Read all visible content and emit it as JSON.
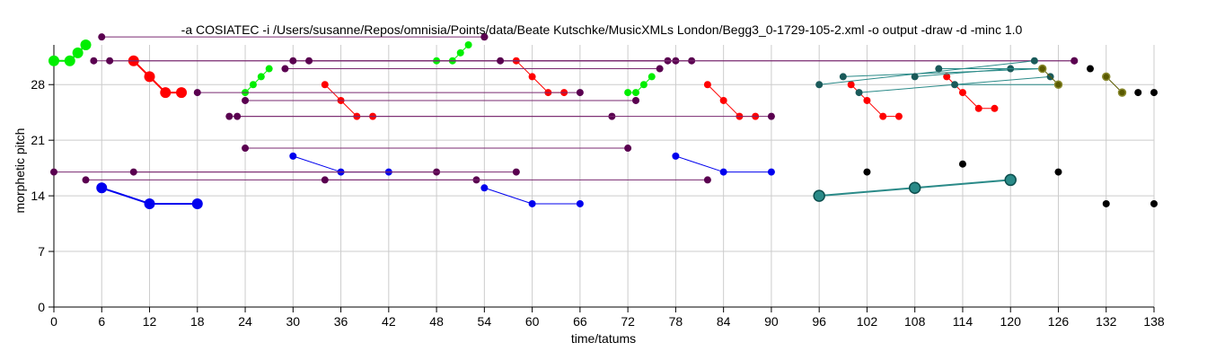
{
  "chart_data": {
    "type": "scatter",
    "title": "-a COSIATEC -i /Users/susanne/Repos/omnisia/Points/data/Beate Kutschke/MusicXMLs London/Begg3_0-1729-105-2.xml -o output -draw -d -minc 1.0",
    "xlabel": "time/tatums",
    "ylabel": "morphetic pitch",
    "xlim": [
      0,
      138
    ],
    "ylim": [
      0,
      33
    ],
    "x_ticks": [
      0,
      6,
      12,
      18,
      24,
      30,
      36,
      42,
      48,
      54,
      60,
      66,
      72,
      78,
      84,
      90,
      96,
      102,
      108,
      114,
      120,
      126,
      132,
      138
    ],
    "y_ticks": [
      0,
      7,
      14,
      21,
      28
    ],
    "grid": true,
    "colors": {
      "green": "#00ee00",
      "red": "#ff0000",
      "blue": "#0000ee",
      "purple": "#5a0050",
      "purple_line": "#7a2a70",
      "teal": "#2a8a88",
      "teal_dark": "#1a5a5a",
      "olive": "#5a5a00",
      "black": "#000000"
    },
    "series": [
      {
        "color": "green",
        "style": "chain",
        "size": "large",
        "points": [
          [
            0,
            31
          ],
          [
            2,
            31
          ],
          [
            3,
            32
          ],
          [
            4,
            33
          ]
        ]
      },
      {
        "color": "green",
        "style": "chain",
        "size": "small",
        "points": [
          [
            24,
            27
          ],
          [
            25,
            28
          ],
          [
            26,
            29
          ],
          [
            27,
            30
          ]
        ]
      },
      {
        "color": "green",
        "style": "chain",
        "size": "small",
        "points": [
          [
            48,
            31
          ],
          [
            50,
            31
          ],
          [
            51,
            32
          ],
          [
            52,
            33
          ]
        ]
      },
      {
        "color": "green",
        "style": "chain",
        "size": "small",
        "points": [
          [
            72,
            27
          ],
          [
            73,
            27
          ],
          [
            74,
            28
          ],
          [
            75,
            29
          ]
        ]
      },
      {
        "color": "red",
        "style": "chain",
        "size": "large",
        "points": [
          [
            10,
            31
          ],
          [
            12,
            29
          ],
          [
            14,
            27
          ],
          [
            16,
            27
          ]
        ]
      },
      {
        "color": "red",
        "style": "chain",
        "size": "small",
        "points": [
          [
            34,
            28
          ],
          [
            36,
            26
          ],
          [
            38,
            24
          ],
          [
            40,
            24
          ]
        ]
      },
      {
        "color": "red",
        "style": "chain",
        "size": "small",
        "points": [
          [
            58,
            31
          ],
          [
            60,
            29
          ],
          [
            62,
            27
          ],
          [
            64,
            27
          ]
        ]
      },
      {
        "color": "red",
        "style": "chain",
        "size": "small",
        "points": [
          [
            82,
            28
          ],
          [
            84,
            26
          ],
          [
            86,
            24
          ],
          [
            88,
            24
          ]
        ]
      },
      {
        "color": "red",
        "style": "chain",
        "size": "small",
        "points": [
          [
            100,
            28
          ],
          [
            102,
            26
          ],
          [
            104,
            24
          ],
          [
            106,
            24
          ]
        ]
      },
      {
        "color": "red",
        "style": "chain",
        "size": "small",
        "points": [
          [
            112,
            29
          ],
          [
            114,
            27
          ],
          [
            116,
            25
          ],
          [
            118,
            25
          ]
        ]
      },
      {
        "color": "blue",
        "style": "chain",
        "size": "large",
        "points": [
          [
            6,
            15
          ],
          [
            12,
            13
          ],
          [
            18,
            13
          ]
        ]
      },
      {
        "color": "blue",
        "style": "chain",
        "size": "small",
        "points": [
          [
            30,
            19
          ],
          [
            36,
            17
          ],
          [
            42,
            17
          ]
        ]
      },
      {
        "color": "blue",
        "style": "chain",
        "size": "small",
        "points": [
          [
            54,
            15
          ],
          [
            60,
            13
          ],
          [
            66,
            13
          ]
        ]
      },
      {
        "color": "blue",
        "style": "chain",
        "size": "small",
        "points": [
          [
            78,
            19
          ],
          [
            84,
            17
          ],
          [
            90,
            17
          ]
        ]
      },
      {
        "color": "purple",
        "style": "pair",
        "size": "small",
        "line": "purple_line",
        "points": [
          [
            6,
            34
          ],
          [
            54,
            34
          ]
        ]
      },
      {
        "color": "purple",
        "style": "pair",
        "size": "small",
        "line": "purple_line",
        "points": [
          [
            5,
            31
          ],
          [
            128,
            31
          ]
        ]
      },
      {
        "color": "purple",
        "style": "pair",
        "size": "small",
        "line": "purple_line",
        "points": [
          [
            7,
            31
          ],
          [
            77,
            31
          ]
        ]
      },
      {
        "color": "purple",
        "style": "pair",
        "size": "small",
        "line": "purple_line",
        "points": [
          [
            29,
            30
          ],
          [
            76,
            30
          ]
        ]
      },
      {
        "color": "purple",
        "style": "pair",
        "size": "small",
        "line": "purple_line",
        "points": [
          [
            18,
            27
          ],
          [
            66,
            27
          ]
        ]
      },
      {
        "color": "purple",
        "style": "pair",
        "size": "small",
        "line": "purple_line",
        "points": [
          [
            24,
            26
          ],
          [
            73,
            26
          ]
        ]
      },
      {
        "color": "purple",
        "style": "pair",
        "size": "small",
        "line": "purple_line",
        "points": [
          [
            22,
            24
          ],
          [
            70,
            24
          ]
        ]
      },
      {
        "color": "purple",
        "style": "pair",
        "size": "small",
        "line": "purple_line",
        "points": [
          [
            23,
            24
          ],
          [
            90,
            24
          ]
        ]
      },
      {
        "color": "purple",
        "style": "pair",
        "size": "small",
        "line": "purple_line",
        "points": [
          [
            24,
            20
          ],
          [
            72,
            20
          ]
        ]
      },
      {
        "color": "purple",
        "style": "pair",
        "size": "small",
        "line": "purple_line",
        "points": [
          [
            0,
            17
          ],
          [
            48,
            17
          ]
        ]
      },
      {
        "color": "purple",
        "style": "pair",
        "size": "small",
        "line": "purple_line",
        "points": [
          [
            10,
            17
          ],
          [
            58,
            17
          ]
        ]
      },
      {
        "color": "purple",
        "style": "pair",
        "size": "small",
        "line": "purple_line",
        "points": [
          [
            4,
            16
          ],
          [
            53,
            16
          ]
        ]
      },
      {
        "color": "purple",
        "style": "pair",
        "size": "small",
        "line": "purple_line",
        "points": [
          [
            34,
            16
          ],
          [
            82,
            16
          ]
        ]
      },
      {
        "color": "purple",
        "style": "pair",
        "size": "small",
        "line": "purple_line",
        "points": [
          [
            30,
            31
          ],
          [
            78,
            31
          ]
        ]
      },
      {
        "color": "purple",
        "style": "pair",
        "size": "small",
        "line": "purple_line",
        "points": [
          [
            32,
            31
          ],
          [
            80,
            31
          ]
        ]
      },
      {
        "color": "purple",
        "style": "pair",
        "size": "small",
        "line": "purple_line",
        "points": [
          [
            56,
            31
          ],
          [
            128,
            31
          ]
        ]
      },
      {
        "color": "purple",
        "style": "pair",
        "size": "small",
        "line": "purple_line",
        "points": [
          [
            54,
            34
          ],
          [
            54,
            34
          ]
        ]
      },
      {
        "color": "teal",
        "style": "chain",
        "size": "large",
        "points": [
          [
            96,
            14
          ],
          [
            108,
            15
          ],
          [
            120,
            16
          ]
        ]
      },
      {
        "color": "teal_dark",
        "style": "pair",
        "size": "small",
        "line": "teal",
        "points": [
          [
            96,
            28
          ],
          [
            123,
            31
          ]
        ]
      },
      {
        "color": "teal_dark",
        "style": "pair",
        "size": "small",
        "line": "teal",
        "points": [
          [
            99,
            29
          ],
          [
            124,
            30
          ]
        ]
      },
      {
        "color": "teal_dark",
        "style": "pair",
        "size": "small",
        "line": "teal",
        "points": [
          [
            101,
            27
          ],
          [
            125,
            29
          ]
        ]
      },
      {
        "color": "teal_dark",
        "style": "pair",
        "size": "small",
        "line": "teal",
        "points": [
          [
            108,
            29
          ],
          [
            120,
            30
          ]
        ]
      },
      {
        "color": "teal_dark",
        "style": "pair",
        "size": "small",
        "line": "teal",
        "points": [
          [
            111,
            30
          ],
          [
            124,
            30
          ]
        ]
      },
      {
        "color": "teal_dark",
        "style": "pair",
        "size": "small",
        "line": "teal",
        "points": [
          [
            113,
            28
          ],
          [
            126,
            28
          ]
        ]
      },
      {
        "color": "olive",
        "style": "chain",
        "size": "small",
        "points": [
          [
            124,
            30
          ],
          [
            126,
            28
          ]
        ]
      },
      {
        "color": "olive",
        "style": "chain",
        "size": "small",
        "points": [
          [
            132,
            29
          ],
          [
            134,
            27
          ]
        ]
      },
      {
        "color": "black",
        "style": "points",
        "size": "small",
        "points": [
          [
            102,
            17
          ],
          [
            114,
            18
          ],
          [
            126,
            17
          ],
          [
            130,
            30
          ],
          [
            132,
            13
          ],
          [
            136,
            27
          ],
          [
            138,
            27
          ],
          [
            138,
            13
          ]
        ]
      }
    ]
  }
}
